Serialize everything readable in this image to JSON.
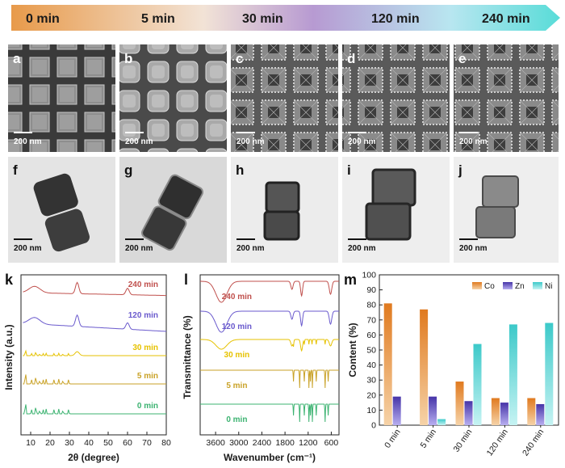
{
  "header": {
    "stages": [
      "0 min",
      "5 min",
      "30 min",
      "120 min",
      "240 min"
    ]
  },
  "sem_panels": [
    {
      "letter": "a",
      "scale": "200 nm"
    },
    {
      "letter": "b",
      "scale": "200 nm"
    },
    {
      "letter": "c",
      "scale": "200 nm"
    },
    {
      "letter": "d",
      "scale": "200 nm"
    },
    {
      "letter": "e",
      "scale": "200 nm"
    }
  ],
  "tem_panels": [
    {
      "letter": "f",
      "scale": "200 nm"
    },
    {
      "letter": "g",
      "scale": "200 nm"
    },
    {
      "letter": "h",
      "scale": "200 nm"
    },
    {
      "letter": "i",
      "scale": "200 nm"
    },
    {
      "letter": "j",
      "scale": "200 nm"
    }
  ],
  "colors": {
    "c240": "#c0504d",
    "c120": "#6a5acd",
    "c30": "#e6c200",
    "c5": "#c9a227",
    "c0": "#3cb371",
    "co": "#e69138",
    "zn": "#5b4db5",
    "ni": "#5fd3d3"
  },
  "chart_data": [
    {
      "type": "line",
      "panel": "k",
      "title": "",
      "xlabel": "2θ (degree)",
      "ylabel": "Intensity (a.u.)",
      "xlim": [
        5,
        80
      ],
      "xticks": [
        10,
        20,
        30,
        40,
        50,
        60,
        70,
        80
      ],
      "series": [
        {
          "name": "240 min",
          "color_key": "c240"
        },
        {
          "name": "120 min",
          "color_key": "c120"
        },
        {
          "name": "30 min",
          "color_key": "c30"
        },
        {
          "name": "5 min",
          "color_key": "c5"
        },
        {
          "name": "0 min",
          "color_key": "c0"
        }
      ]
    },
    {
      "type": "line",
      "panel": "l",
      "title": "",
      "xlabel": "Wavenumber (cm⁻¹)",
      "ylabel": "Transmittance (%)",
      "xlim": [
        4000,
        400
      ],
      "xticks": [
        3600,
        3000,
        2400,
        1800,
        1200,
        600
      ],
      "series": [
        {
          "name": "240 min",
          "color_key": "c240"
        },
        {
          "name": "120 min",
          "color_key": "c120"
        },
        {
          "name": "30 min",
          "color_key": "c30"
        },
        {
          "name": "5 min",
          "color_key": "c5"
        },
        {
          "name": "0 min",
          "color_key": "c0"
        }
      ]
    },
    {
      "type": "bar",
      "panel": "m",
      "title": "",
      "xlabel": "",
      "ylabel": "Content (%)",
      "ylim": [
        0,
        100
      ],
      "yticks": [
        0,
        10,
        20,
        30,
        40,
        50,
        60,
        70,
        80,
        90,
        100
      ],
      "categories": [
        "0 min",
        "5 min",
        "30 min",
        "120 min",
        "240 min"
      ],
      "series": [
        {
          "name": "Co",
          "color_key": "co",
          "values": [
            81,
            77,
            29,
            18,
            18
          ]
        },
        {
          "name": "Zn",
          "color_key": "zn",
          "values": [
            19,
            19,
            16,
            15,
            14
          ]
        },
        {
          "name": "Ni",
          "color_key": "ni",
          "values": [
            0,
            4,
            54,
            67,
            68
          ]
        }
      ]
    }
  ]
}
